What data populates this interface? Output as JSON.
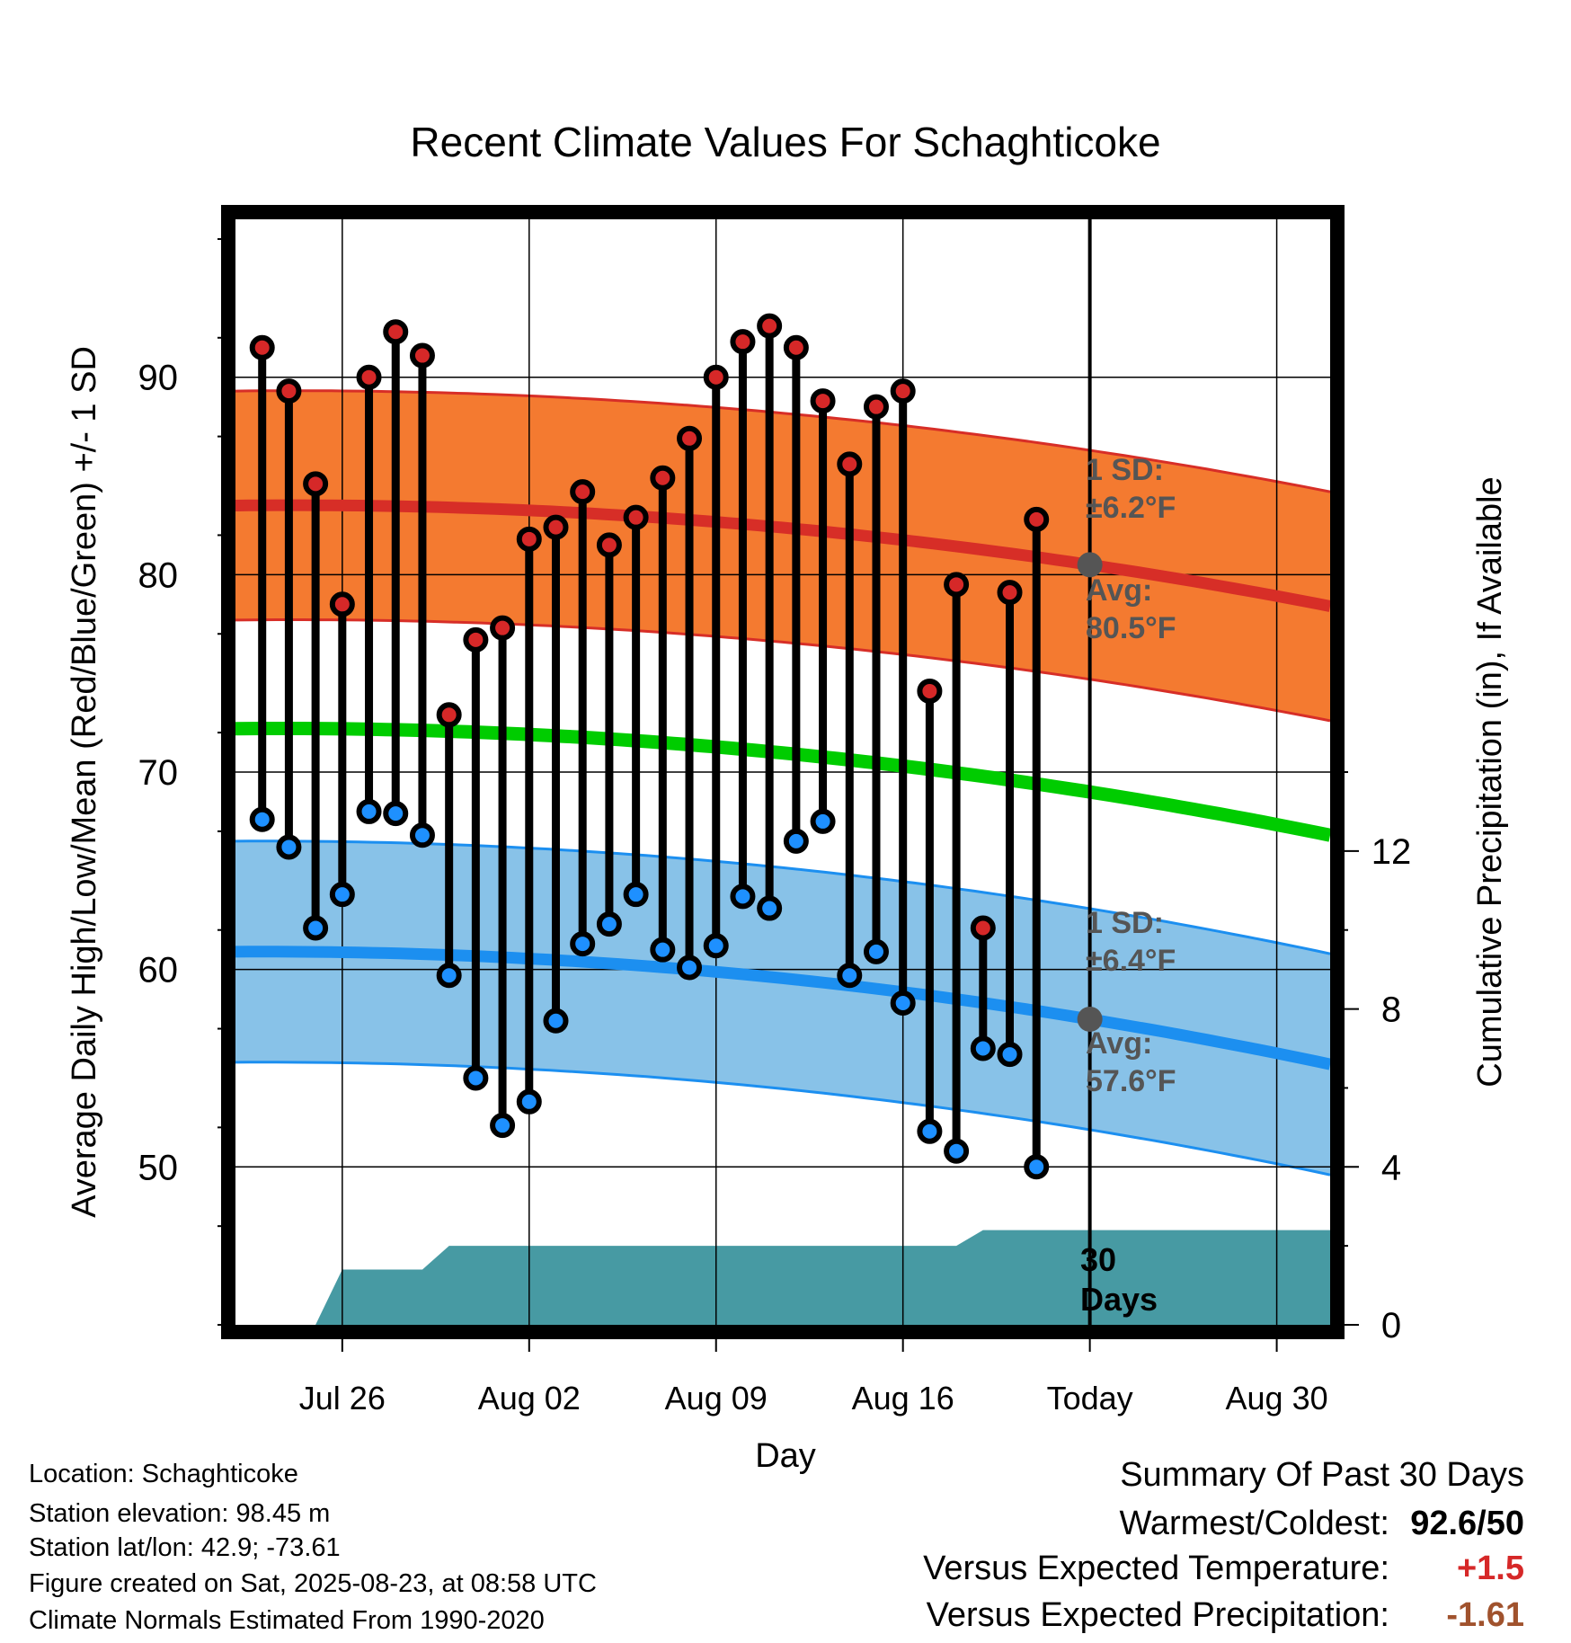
{
  "chart_data": {
    "type": "line",
    "title": "Recent Climate Values For Schaghticoke",
    "xlabel": "Day",
    "ylabel": "Average Daily High/Low/Mean (Red/Blue/Green) +/- 1 SD",
    "y2label": "Cumulative Precipitation (in), If Available",
    "xlim": [
      "2025-07-22",
      "2025-09-01"
    ],
    "ylim": [
      42,
      98
    ],
    "y2lim": [
      0,
      28
    ],
    "grid": true,
    "x_ticks": [
      {
        "date": "2025-07-26",
        "label": "Jul 26"
      },
      {
        "date": "2025-08-02",
        "label": "Aug 02"
      },
      {
        "date": "2025-08-09",
        "label": "Aug 09"
      },
      {
        "date": "2025-08-16",
        "label": "Aug 16"
      },
      {
        "date": "2025-08-23",
        "label": "Today"
      },
      {
        "date": "2025-08-30",
        "label": "Aug 30"
      }
    ],
    "y_ticks": [
      50,
      60,
      70,
      80,
      90
    ],
    "y2_ticks": [
      0,
      4,
      8,
      12
    ],
    "today": "2025-08-23",
    "daily": [
      {
        "date": "2025-07-23",
        "high": 91.5,
        "low": 67.6
      },
      {
        "date": "2025-07-24",
        "high": 89.3,
        "low": 66.2
      },
      {
        "date": "2025-07-25",
        "high": 84.6,
        "low": 62.1
      },
      {
        "date": "2025-07-26",
        "high": 78.5,
        "low": 63.8
      },
      {
        "date": "2025-07-27",
        "high": 90.0,
        "low": 68.0
      },
      {
        "date": "2025-07-28",
        "high": 92.3,
        "low": 67.9
      },
      {
        "date": "2025-07-29",
        "high": 91.1,
        "low": 66.8
      },
      {
        "date": "2025-07-30",
        "high": 72.9,
        "low": 59.7
      },
      {
        "date": "2025-07-31",
        "high": 76.7,
        "low": 54.5
      },
      {
        "date": "2025-08-01",
        "high": 77.3,
        "low": 52.1
      },
      {
        "date": "2025-08-02",
        "high": 81.8,
        "low": 53.3
      },
      {
        "date": "2025-08-03",
        "high": 82.4,
        "low": 57.4
      },
      {
        "date": "2025-08-04",
        "high": 84.2,
        "low": 61.3
      },
      {
        "date": "2025-08-05",
        "high": 81.5,
        "low": 62.3
      },
      {
        "date": "2025-08-06",
        "high": 82.9,
        "low": 63.8
      },
      {
        "date": "2025-08-07",
        "high": 84.9,
        "low": 61.0
      },
      {
        "date": "2025-08-08",
        "high": 86.9,
        "low": 60.1
      },
      {
        "date": "2025-08-09",
        "high": 90.0,
        "low": 61.2
      },
      {
        "date": "2025-08-10",
        "high": 91.8,
        "low": 63.7
      },
      {
        "date": "2025-08-11",
        "high": 92.6,
        "low": 63.1
      },
      {
        "date": "2025-08-12",
        "high": 91.5,
        "low": 66.5
      },
      {
        "date": "2025-08-13",
        "high": 88.8,
        "low": 67.5
      },
      {
        "date": "2025-08-14",
        "high": 85.6,
        "low": 59.7
      },
      {
        "date": "2025-08-15",
        "high": 88.5,
        "low": 60.9
      },
      {
        "date": "2025-08-16",
        "high": 89.3,
        "low": 58.3
      },
      {
        "date": "2025-08-17",
        "high": 74.1,
        "low": 51.8
      },
      {
        "date": "2025-08-18",
        "high": 79.5,
        "low": 50.8
      },
      {
        "date": "2025-08-19",
        "high": 62.1,
        "low": 56.0
      },
      {
        "date": "2025-08-20",
        "high": 79.1,
        "low": 55.7
      },
      {
        "date": "2025-08-21",
        "high": 82.8,
        "low": 50.0
      }
    ],
    "normals": {
      "high": {
        "start": [
          "2025-07-22",
          83.5
        ],
        "mid": [
          "2025-08-22",
          80.7
        ],
        "end": [
          "2025-09-01",
          78.4
        ],
        "sd": 5.8
      },
      "mean": {
        "start": [
          "2025-07-22",
          72.2
        ],
        "mid": [
          "2025-08-22",
          69.2
        ],
        "end": [
          "2025-09-01",
          66.8
        ]
      },
      "low": {
        "start": [
          "2025-07-22",
          60.9
        ],
        "mid": [
          "2025-08-22",
          57.7
        ],
        "end": [
          "2025-09-01",
          55.2
        ],
        "sd": 5.6
      }
    },
    "precipitation": [
      {
        "date": "2025-07-22",
        "value": 0
      },
      {
        "date": "2025-07-25",
        "value": 0
      },
      {
        "date": "2025-07-26",
        "value": 1.4
      },
      {
        "date": "2025-07-29",
        "value": 1.4
      },
      {
        "date": "2025-07-30",
        "value": 2.0
      },
      {
        "date": "2025-08-18",
        "value": 2.0
      },
      {
        "date": "2025-08-19",
        "value": 2.4
      },
      {
        "date": "2025-09-01",
        "value": 2.4
      }
    ],
    "annotations": {
      "high_sd_label": "1 SD:",
      "high_sd_value": "±6.2°F",
      "high_avg_label": "Avg:",
      "high_avg_value": "80.5°F",
      "low_sd_label": "1 SD:",
      "low_sd_value": "±6.4°F",
      "low_avg_label": "Avg:",
      "low_avg_value": "57.6°F",
      "window_count": "30",
      "window_unit": "Days"
    },
    "colors": {
      "high_band": "#f47a30",
      "high_line": "#d72e27",
      "low_band": "#88c2e8",
      "low_line": "#1c8ff0",
      "mean_line": "#00cc00",
      "precip_fill": "#479aa3",
      "high_point": "#d62828",
      "low_point": "#1e90ff",
      "annotation_text": "#555555"
    }
  },
  "info": {
    "location": "Location: Schaghticoke",
    "elevation": "Station elevation: 98.45 m",
    "latlon": "Station lat/lon: 42.9; -73.61",
    "created": "Figure created on Sat, 2025-08-23, at 08:58 UTC",
    "normals": "Climate Normals Estimated From 1990-2020"
  },
  "summary": {
    "title": "Summary Of Past 30 Days",
    "warm_cold_label": "Warmest/Coldest:",
    "warm_cold_value": "92.6/50",
    "temp_label": "Versus Expected Temperature:",
    "temp_value": "+1.5",
    "temp_color": "#d62828",
    "precip_label": "Versus Expected Precipitation:",
    "precip_value": "-1.61",
    "precip_color": "#a0522d"
  }
}
